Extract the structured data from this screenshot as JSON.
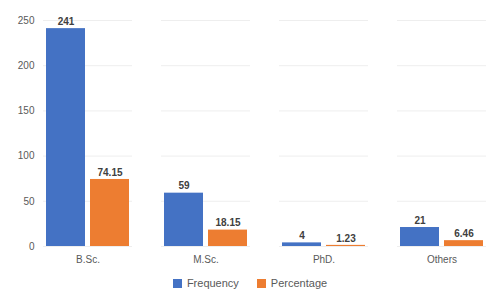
{
  "chart_data": {
    "type": "bar",
    "categories": [
      "B.Sc.",
      "M.Sc.",
      "PhD.",
      "Others"
    ],
    "series": [
      {
        "name": "Frequency",
        "color": "#4472c4",
        "values": [
          241,
          59,
          4,
          21
        ]
      },
      {
        "name": "Percentage",
        "color": "#ed7d31",
        "values": [
          74.15,
          18.15,
          1.23,
          6.46
        ]
      }
    ],
    "ylim": [
      0,
      250
    ],
    "yticks": [
      0,
      50,
      100,
      150,
      200,
      250
    ],
    "grid": true,
    "legend": "bottom",
    "data_labels": true
  }
}
